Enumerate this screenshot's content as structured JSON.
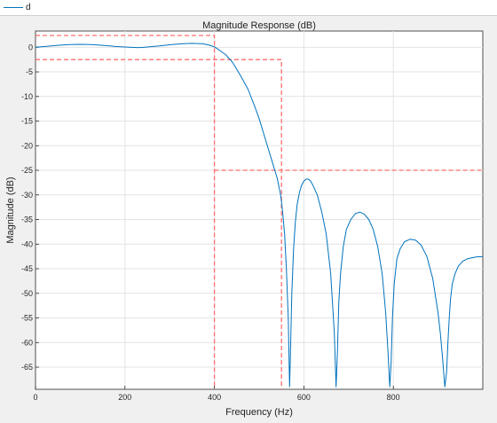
{
  "legend": {
    "entries": [
      {
        "label": "d",
        "color": "#0072bd"
      }
    ]
  },
  "chart_data": {
    "type": "line",
    "title": "Magnitude Response (dB)",
    "xlabel": "Frequency (Hz)",
    "ylabel": "Magnitude (dB)",
    "xlim": [
      0,
      1000
    ],
    "ylim": [
      -69.5,
      3.3
    ],
    "xticks": [
      0,
      200,
      400,
      600,
      800
    ],
    "yticks": [
      0,
      -5,
      -10,
      -15,
      -20,
      -25,
      -30,
      -35,
      -40,
      -45,
      -50,
      -55,
      -60,
      -65
    ],
    "grid": true,
    "legend_position": "top-left",
    "colors": {
      "series": "#0072bd",
      "mask": "#ff6e6e"
    },
    "series": [
      {
        "name": "d",
        "x": [
          0,
          25,
          50,
          75,
          100,
          125,
          150,
          175,
          200,
          225,
          235,
          250,
          275,
          300,
          325,
          350,
          375,
          390,
          400,
          410,
          425,
          440,
          450,
          460,
          475,
          490,
          500,
          510,
          520,
          530,
          540,
          548,
          552,
          557,
          561,
          565,
          568,
          570,
          573,
          577,
          581,
          585,
          590,
          595,
          600,
          605,
          610,
          615,
          620,
          630,
          640,
          650,
          660,
          668,
          672,
          675,
          678,
          682,
          688,
          695,
          705,
          715,
          725,
          735,
          745,
          755,
          765,
          775,
          783,
          788,
          792,
          795,
          798,
          802,
          808,
          815,
          825,
          838,
          850,
          862,
          875,
          888,
          900,
          905,
          910,
          915,
          919,
          922,
          925,
          928,
          932,
          938,
          945,
          955,
          965,
          975,
          985,
          1000
        ],
        "y": [
          0,
          0.2,
          0.4,
          0.55,
          0.6,
          0.55,
          0.4,
          0.2,
          0.05,
          -0.05,
          -0.05,
          0.05,
          0.25,
          0.5,
          0.7,
          0.8,
          0.7,
          0.4,
          0.1,
          -0.5,
          -1.5,
          -3,
          -4.5,
          -6,
          -8.5,
          -12,
          -14.5,
          -17.5,
          -20.5,
          -23.5,
          -26.5,
          -30,
          -33,
          -38,
          -45,
          -55,
          -69,
          -62,
          -50,
          -41,
          -35.5,
          -32,
          -29.5,
          -28,
          -27.2,
          -26.8,
          -26.8,
          -27.2,
          -28,
          -30,
          -33.5,
          -38,
          -46,
          -58,
          -69,
          -62,
          -52,
          -46,
          -40.5,
          -37,
          -35,
          -33.8,
          -33.5,
          -33.9,
          -35,
          -37,
          -40.5,
          -46,
          -54,
          -62,
          -69,
          -64,
          -55,
          -48,
          -43,
          -41,
          -39.5,
          -39,
          -39.2,
          -40.2,
          -42.5,
          -47,
          -54,
          -58,
          -63,
          -69,
          -66,
          -60,
          -55,
          -51,
          -48,
          -46,
          -44.5,
          -43.5,
          -43,
          -42.8,
          -42.6,
          -42.5
        ]
      }
    ],
    "mask": {
      "passband_upper": {
        "x": [
          0,
          400,
          400
        ],
        "y": [
          2.4,
          2.4,
          -69.5
        ]
      },
      "passband_lower": {
        "x": [
          0,
          550,
          550
        ],
        "y": [
          -2.5,
          -2.5,
          -69.5
        ]
      },
      "stopband_upper": {
        "x": [
          400,
          1000
        ],
        "y": [
          -25,
          -25
        ]
      }
    }
  }
}
